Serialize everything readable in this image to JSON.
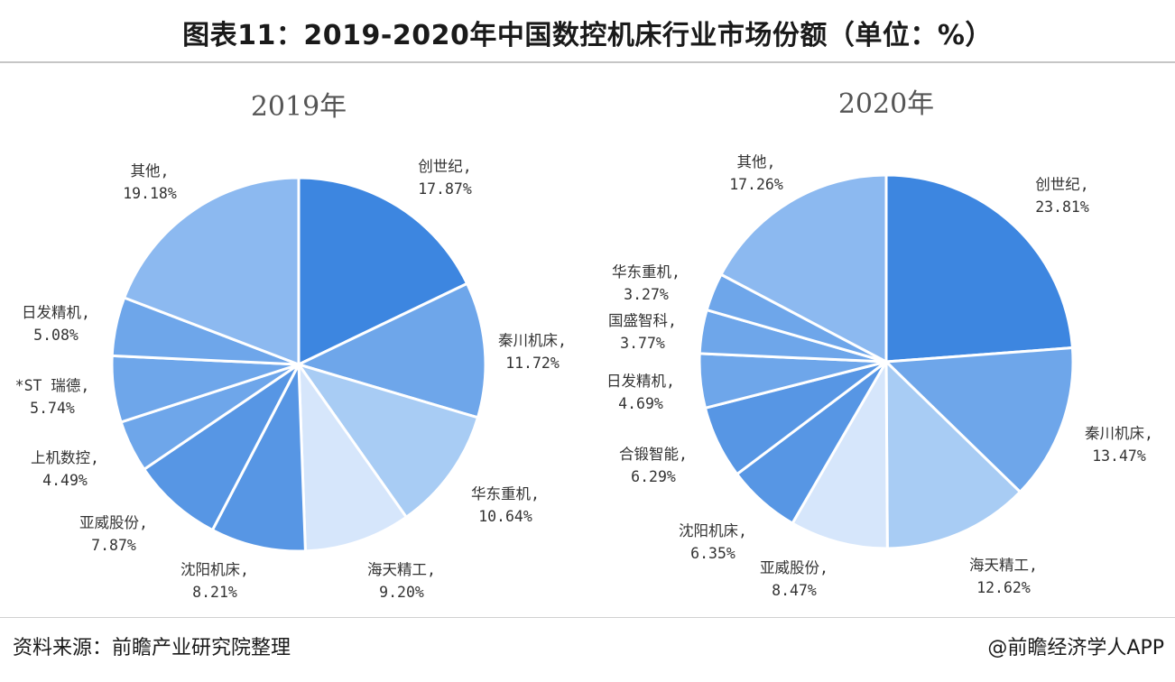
{
  "title": "图表11：2019-2020年中国数控机床行业市场份额（单位：%）",
  "footer": {
    "source": "资料来源：前瞻产业研究院整理",
    "credit": "@前瞻经济学人APP"
  },
  "colors": {
    "deep": "#3d86e0",
    "mid": "#5796e4",
    "soft": "#6ea6ea",
    "light": "#8cb9f0",
    "pale": "#a8ccf4",
    "palest": "#d6e6fb",
    "separator": "#ffffff"
  },
  "chart_data": [
    {
      "type": "pie",
      "title": "2019年",
      "start_angle_deg": 0,
      "direction": "clockwise",
      "slices": [
        {
          "name": "创世纪",
          "value": 17.87,
          "color": "#3d86e0"
        },
        {
          "name": "秦川机床",
          "value": 11.72,
          "color": "#6ea6ea"
        },
        {
          "name": "华东重机",
          "value": 10.64,
          "color": "#a8ccf4"
        },
        {
          "name": "海天精工",
          "value": 9.2,
          "color": "#d6e6fb"
        },
        {
          "name": "沈阳机床",
          "value": 8.21,
          "color": "#5796e4"
        },
        {
          "name": "亚威股份",
          "value": 7.87,
          "color": "#5796e4"
        },
        {
          "name": "上机数控",
          "value": 4.49,
          "color": "#6ea6ea"
        },
        {
          "name": "*ST 瑞德",
          "value": 5.74,
          "color": "#6ea6ea"
        },
        {
          "name": "日发精机",
          "value": 5.08,
          "color": "#6ea6ea"
        },
        {
          "name": "其他",
          "value": 19.18,
          "color": "#8cb9f0"
        }
      ]
    },
    {
      "type": "pie",
      "title": "2020年",
      "start_angle_deg": 0,
      "direction": "clockwise",
      "slices": [
        {
          "name": "创世纪",
          "value": 23.81,
          "color": "#3d86e0"
        },
        {
          "name": "秦川机床",
          "value": 13.47,
          "color": "#6ea6ea"
        },
        {
          "name": "海天精工",
          "value": 12.62,
          "color": "#a8ccf4"
        },
        {
          "name": "亚威股份",
          "value": 8.47,
          "color": "#d6e6fb"
        },
        {
          "name": "沈阳机床",
          "value": 6.35,
          "color": "#5796e4"
        },
        {
          "name": "合锻智能",
          "value": 6.29,
          "color": "#5796e4"
        },
        {
          "name": "日发精机",
          "value": 4.69,
          "color": "#6ea6ea"
        },
        {
          "name": "国盛智科",
          "value": 3.77,
          "color": "#6ea6ea"
        },
        {
          "name": "华东重机",
          "value": 3.27,
          "color": "#6ea6ea"
        },
        {
          "name": "其他",
          "value": 17.26,
          "color": "#8cb9f0"
        }
      ]
    }
  ]
}
